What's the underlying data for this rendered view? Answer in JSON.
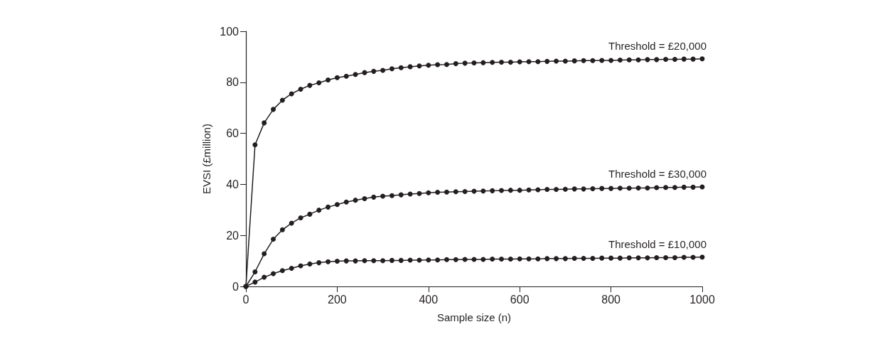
{
  "chart_data": {
    "type": "line",
    "xlabel": "Sample size (n)",
    "ylabel": "EVSI (£million)",
    "x": [
      0,
      20,
      40,
      60,
      80,
      100,
      120,
      140,
      160,
      180,
      200,
      220,
      240,
      260,
      280,
      300,
      320,
      340,
      360,
      380,
      400,
      420,
      440,
      460,
      480,
      500,
      520,
      540,
      560,
      580,
      600,
      620,
      640,
      660,
      680,
      700,
      720,
      740,
      760,
      780,
      800,
      820,
      840,
      860,
      880,
      900,
      920,
      940,
      960,
      980,
      1000
    ],
    "series": [
      {
        "name": "Threshold = £20,000",
        "color": "#231f20",
        "values": [
          0,
          55.5,
          64.1,
          69.4,
          73.0,
          75.5,
          77.3,
          78.8,
          79.8,
          80.9,
          81.8,
          82.4,
          83.1,
          83.8,
          84.3,
          84.7,
          85.3,
          85.7,
          86.1,
          86.4,
          86.7,
          86.9,
          87.0,
          87.3,
          87.5,
          87.6,
          87.7,
          87.8,
          87.9,
          87.9,
          88.0,
          88.1,
          88.1,
          88.2,
          88.3,
          88.3,
          88.4,
          88.5,
          88.5,
          88.6,
          88.6,
          88.7,
          88.8,
          88.8,
          88.9,
          88.9,
          89.0,
          89.0,
          89.1,
          89.1,
          89.2
        ]
      },
      {
        "name": "Threshold = £30,000",
        "color": "#231f20",
        "values": [
          0,
          5.7,
          12.8,
          18.5,
          22.2,
          24.8,
          26.9,
          28.3,
          29.9,
          31.1,
          32.1,
          33.1,
          33.8,
          34.4,
          35.0,
          35.4,
          35.6,
          35.9,
          36.2,
          36.4,
          36.7,
          36.9,
          37.0,
          37.1,
          37.2,
          37.3,
          37.4,
          37.5,
          37.6,
          37.7,
          37.7,
          37.8,
          37.9,
          38.0,
          38.0,
          38.1,
          38.2,
          38.2,
          38.3,
          38.4,
          38.4,
          38.5,
          38.5,
          38.6,
          38.6,
          38.7,
          38.8,
          38.8,
          38.9,
          38.9,
          39.0
        ]
      },
      {
        "name": "Threshold = £10,000",
        "color": "#231f20",
        "values": [
          0,
          1.7,
          3.6,
          5.0,
          6.2,
          7.1,
          8.1,
          8.8,
          9.3,
          9.7,
          9.9,
          10.0,
          10.0,
          10.1,
          10.1,
          10.1,
          10.2,
          10.2,
          10.3,
          10.3,
          10.4,
          10.4,
          10.5,
          10.5,
          10.6,
          10.6,
          10.6,
          10.7,
          10.7,
          10.7,
          10.8,
          10.8,
          10.8,
          10.9,
          10.9,
          10.9,
          11.0,
          11.0,
          11.0,
          11.1,
          11.1,
          11.1,
          11.2,
          11.2,
          11.2,
          11.3,
          11.3,
          11.3,
          11.4,
          11.4,
          11.5
        ]
      }
    ],
    "xlim": [
      0,
      1000
    ],
    "xticks": [
      0,
      200,
      400,
      600,
      800,
      1000
    ],
    "ylim": [
      0,
      100
    ],
    "yticks": [
      0,
      20,
      40,
      60,
      80,
      100
    ],
    "grid": false,
    "legend": false,
    "marker": "circle",
    "line_style": "solid"
  }
}
